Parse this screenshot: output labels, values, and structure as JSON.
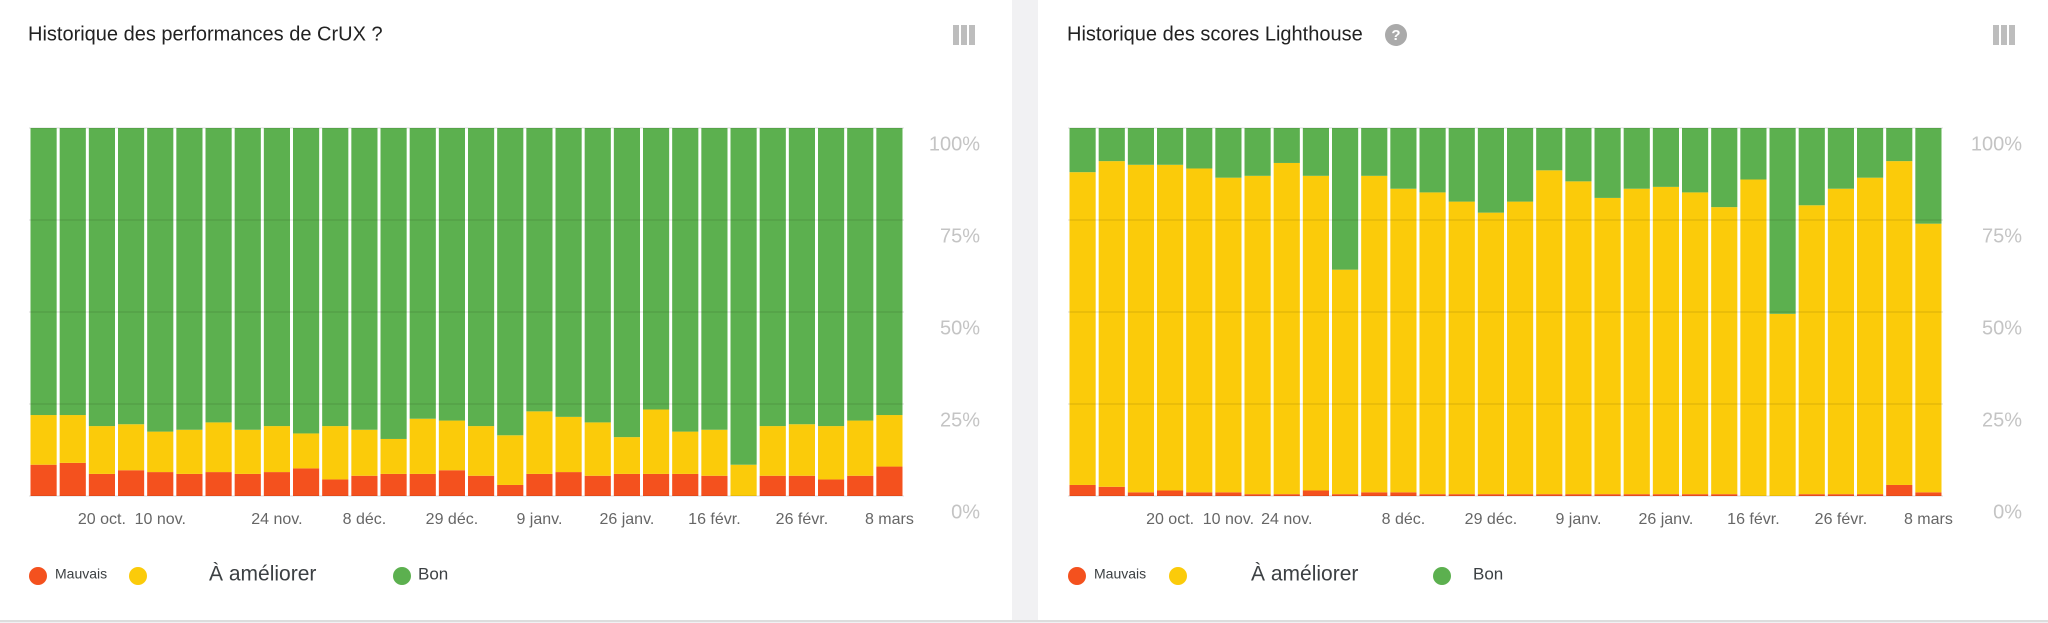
{
  "chart_data": [
    {
      "type": "bar",
      "stacked": true,
      "grid": true,
      "title": "Historique des performances de CrUX ?",
      "categories": [
        null,
        null,
        "20 oct.",
        null,
        "10 nov.",
        null,
        null,
        null,
        "24 nov.",
        null,
        null,
        "8 déc.",
        null,
        null,
        "29 déc.",
        null,
        null,
        "9 janv.",
        null,
        null,
        "26 janv.",
        null,
        null,
        "16 févr.",
        null,
        null,
        "26 févr.",
        null,
        null,
        "8 mars"
      ],
      "series": [
        {
          "name": "Mauvais",
          "color": "#f4511e",
          "values": [
            8.5,
            9,
            6,
            7,
            6.5,
            6,
            6.5,
            6,
            6.5,
            7.5,
            4.5,
            5.5,
            6,
            6,
            7,
            5.5,
            3,
            6,
            6.5,
            5.5,
            6,
            6,
            6,
            5.5,
            0,
            5.5,
            5.5,
            4.5,
            5.5,
            8
          ]
        },
        {
          "name": "À améliorer",
          "color": "#fbcb0a",
          "values": [
            13.5,
            13,
            13,
            12.5,
            11,
            12,
            13.5,
            12,
            12.5,
            9.5,
            14.5,
            12.5,
            9.5,
            15,
            13.5,
            13.5,
            13.5,
            17,
            15,
            14.5,
            10,
            17.5,
            11.5,
            12.5,
            8.5,
            13.5,
            14,
            14.5,
            15,
            14
          ]
        },
        {
          "name": "Bon",
          "color": "#5cb04f",
          "values": [
            78,
            78,
            81,
            80.5,
            82.5,
            82,
            80,
            82,
            81,
            83,
            81,
            82,
            84.5,
            79,
            79.5,
            81,
            83.5,
            77,
            78.5,
            80,
            84,
            76.5,
            82.5,
            82,
            91.5,
            81,
            80.5,
            81,
            79.5,
            78
          ]
        }
      ],
      "ylim": [
        0,
        100
      ],
      "yticks": [
        {
          "value": 0,
          "label": "0%"
        },
        {
          "value": 25,
          "label": "25%"
        },
        {
          "value": 50,
          "label": "50%"
        },
        {
          "value": 75,
          "label": "75%"
        },
        {
          "value": 100,
          "label": "100%"
        }
      ]
    },
    {
      "type": "bar",
      "stacked": true,
      "grid": true,
      "title": "Historique des scores Lighthouse",
      "categories": [
        null,
        null,
        null,
        "20 oct.",
        null,
        "10 nov.",
        null,
        "24 nov.",
        null,
        null,
        null,
        "8 déc.",
        null,
        null,
        "29 déc.",
        null,
        null,
        "9 janv.",
        null,
        null,
        "26 janv.",
        null,
        null,
        "16 févr.",
        null,
        null,
        "26 févr.",
        null,
        null,
        "8 mars"
      ],
      "series": [
        {
          "name": "Mauvais",
          "color": "#f4511e",
          "values": [
            3,
            2.5,
            1,
            1.5,
            1,
            1,
            0.5,
            0.5,
            1.5,
            0.5,
            1,
            1,
            0.5,
            0.5,
            0.5,
            0.5,
            0.5,
            0.5,
            0.5,
            0.5,
            0.5,
            0.5,
            0.5,
            0,
            0,
            0.5,
            0.5,
            0.5,
            3,
            1
          ]
        },
        {
          "name": "À améliorer",
          "color": "#fbcb0a",
          "values": [
            85,
            88.5,
            89,
            88.5,
            88,
            85.5,
            86.5,
            90,
            85.5,
            61,
            86,
            82.5,
            82,
            79.5,
            76.5,
            79.5,
            88,
            85,
            80.5,
            83,
            83.5,
            82,
            78,
            86,
            49.5,
            78.5,
            83,
            86,
            88,
            73
          ]
        },
        {
          "name": "Bon",
          "color": "#5cb04f",
          "values": [
            12,
            9,
            10,
            10,
            11,
            13.5,
            13,
            9.5,
            13,
            38.5,
            13,
            16.5,
            17.5,
            20,
            23,
            20,
            11.5,
            14.5,
            19,
            16.5,
            16,
            17.5,
            21.5,
            14,
            50.5,
            21,
            16.5,
            13.5,
            9,
            26
          ]
        }
      ],
      "ylim": [
        0,
        100
      ],
      "yticks": [
        {
          "value": 0,
          "label": "0%"
        },
        {
          "value": 25,
          "label": "25%"
        },
        {
          "value": 50,
          "label": "50%"
        },
        {
          "value": 75,
          "label": "75%"
        },
        {
          "value": 100,
          "label": "100%"
        }
      ]
    }
  ]
}
